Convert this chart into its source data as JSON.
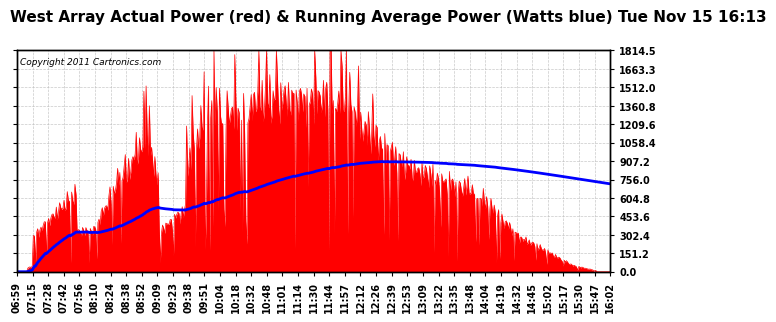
{
  "title": "West Array Actual Power (red) & Running Average Power (Watts blue) Tue Nov 15 16:13",
  "copyright": "Copyright 2011 Cartronics.com",
  "ylim": [
    0,
    1814.5
  ],
  "yticks": [
    0.0,
    151.2,
    302.4,
    453.6,
    604.8,
    756.0,
    907.2,
    1058.4,
    1209.6,
    1360.8,
    1512.0,
    1663.3,
    1814.5
  ],
  "background_color": "#ffffff",
  "grid_color": "#bbbbbb",
  "bar_color": "#ff0000",
  "line_color": "#0000ff",
  "title_fontsize": 11,
  "tick_fontsize": 7.0,
  "xtick_labels": [
    "06:59",
    "07:15",
    "07:28",
    "07:42",
    "07:56",
    "08:10",
    "08:24",
    "08:38",
    "08:52",
    "09:09",
    "09:23",
    "09:38",
    "09:51",
    "10:04",
    "10:18",
    "10:32",
    "10:48",
    "11:01",
    "11:14",
    "11:30",
    "11:44",
    "11:57",
    "12:12",
    "12:26",
    "12:39",
    "12:53",
    "13:09",
    "13:22",
    "13:35",
    "13:48",
    "14:04",
    "14:19",
    "14:32",
    "14:45",
    "15:02",
    "15:17",
    "15:30",
    "15:47",
    "16:02"
  ],
  "n_xticks": 39
}
